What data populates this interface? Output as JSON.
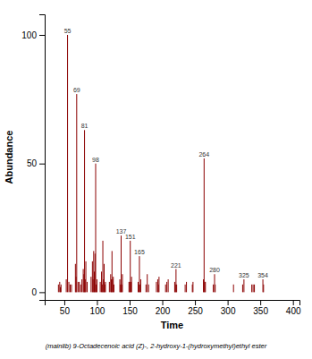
{
  "chart_data": {
    "type": "bar",
    "title": "(mainlib) 9-Octadecenoic acid (Z)-, 2-hydroxy-1-(hydroxymethyl)ethyl ester",
    "xlabel": "Time",
    "ylabel": "Abundance",
    "color": "#8b0000",
    "xlim": [
      20,
      410
    ],
    "ylim": [
      -3,
      108
    ],
    "xticks": [
      50,
      100,
      150,
      200,
      250,
      300,
      350,
      400
    ],
    "yticks": [
      0,
      50,
      100
    ],
    "x": [
      41,
      43,
      44,
      45,
      53,
      55,
      57,
      59,
      61,
      67,
      68,
      69,
      71,
      73,
      75,
      77,
      79,
      80,
      81,
      82,
      83,
      85,
      91,
      93,
      94,
      95,
      96,
      97,
      98,
      99,
      100,
      105,
      107,
      108,
      109,
      110,
      111,
      112,
      113,
      119,
      121,
      122,
      123,
      124,
      125,
      126,
      135,
      136,
      137,
      138,
      139,
      149,
      150,
      151,
      152,
      153,
      163,
      164,
      165,
      166,
      167,
      175,
      177,
      179,
      191,
      193,
      194,
      195,
      205,
      207,
      209,
      219,
      220,
      221,
      222,
      235,
      237,
      246,
      247,
      263,
      264,
      265,
      266,
      278,
      280,
      281,
      309,
      323,
      325,
      337,
      339,
      341,
      354,
      355
    ],
    "values": [
      3,
      4,
      2,
      3,
      5,
      100,
      4,
      3,
      3,
      11,
      6,
      77,
      4,
      4,
      3,
      5,
      9,
      7,
      63,
      5,
      12,
      4,
      6,
      12,
      5,
      16,
      8,
      15,
      50,
      3,
      5,
      4,
      8,
      3,
      20,
      5,
      11,
      3,
      4,
      4,
      7,
      5,
      16,
      5,
      6,
      3,
      5,
      3,
      22,
      3,
      7,
      4,
      4,
      20,
      4,
      6,
      4,
      3,
      14,
      3,
      5,
      3,
      7,
      3,
      4,
      5,
      3,
      6,
      3,
      4,
      5,
      4,
      3,
      9,
      3,
      3,
      4,
      3,
      4,
      5,
      52,
      4,
      4,
      3,
      7,
      3,
      3,
      3,
      5,
      3,
      3,
      3,
      5,
      3
    ],
    "annotations": [
      {
        "x": 55,
        "y": 100,
        "text": "55"
      },
      {
        "x": 69,
        "y": 77,
        "text": "69"
      },
      {
        "x": 81,
        "y": 63,
        "text": "81"
      },
      {
        "x": 98,
        "y": 50,
        "text": "98"
      },
      {
        "x": 137,
        "y": 22,
        "text": "137"
      },
      {
        "x": 151,
        "y": 20,
        "text": "151"
      },
      {
        "x": 165,
        "y": 14,
        "text": "165"
      },
      {
        "x": 221,
        "y": 9,
        "text": "221"
      },
      {
        "x": 264,
        "y": 52,
        "text": "264"
      },
      {
        "x": 280,
        "y": 7,
        "text": "280"
      },
      {
        "x": 325,
        "y": 5,
        "text": "325"
      },
      {
        "x": 354,
        "y": 5,
        "text": "354"
      }
    ]
  }
}
